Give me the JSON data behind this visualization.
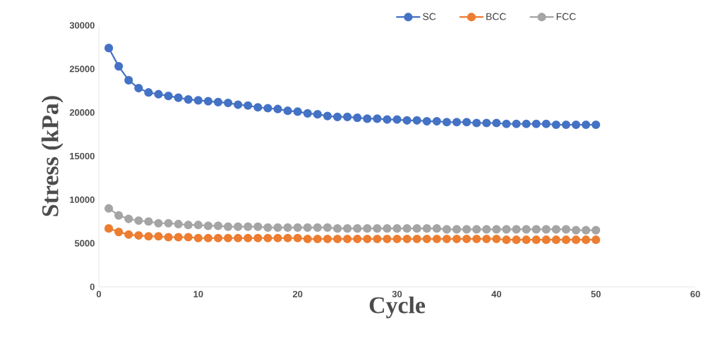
{
  "chart_data": {
    "type": "line",
    "xlabel": "Cycle",
    "ylabel": "Stress (kPa)",
    "x": [
      1,
      2,
      3,
      4,
      5,
      6,
      7,
      8,
      9,
      10,
      11,
      12,
      13,
      14,
      15,
      16,
      17,
      18,
      19,
      20,
      21,
      22,
      23,
      24,
      25,
      26,
      27,
      28,
      29,
      30,
      31,
      32,
      33,
      34,
      35,
      36,
      37,
      38,
      39,
      40,
      41,
      42,
      43,
      44,
      45,
      46,
      47,
      48,
      49,
      50
    ],
    "series": [
      {
        "name": "SC",
        "color": "#4472c4",
        "values": [
          27400,
          25300,
          23700,
          22800,
          22300,
          22100,
          21900,
          21700,
          21500,
          21400,
          21300,
          21200,
          21100,
          20900,
          20800,
          20600,
          20500,
          20400,
          20200,
          20100,
          19900,
          19800,
          19600,
          19500,
          19500,
          19400,
          19300,
          19300,
          19200,
          19200,
          19100,
          19100,
          19000,
          19000,
          18900,
          18900,
          18900,
          18800,
          18800,
          18800,
          18700,
          18700,
          18700,
          18700,
          18700,
          18600,
          18600,
          18600,
          18600,
          18600
        ]
      },
      {
        "name": "BCC",
        "color": "#ed7d31",
        "values": [
          6700,
          6300,
          6000,
          5900,
          5800,
          5800,
          5700,
          5700,
          5700,
          5600,
          5600,
          5600,
          5600,
          5600,
          5600,
          5600,
          5600,
          5600,
          5600,
          5600,
          5500,
          5500,
          5500,
          5500,
          5500,
          5500,
          5500,
          5500,
          5500,
          5500,
          5500,
          5500,
          5500,
          5500,
          5500,
          5500,
          5500,
          5500,
          5500,
          5500,
          5400,
          5400,
          5400,
          5400,
          5400,
          5400,
          5400,
          5400,
          5400,
          5400
        ]
      },
      {
        "name": "FCC",
        "color": "#a5a5a5",
        "values": [
          9000,
          8200,
          7800,
          7600,
          7500,
          7300,
          7300,
          7200,
          7100,
          7100,
          7000,
          7000,
          6900,
          6900,
          6900,
          6900,
          6800,
          6800,
          6800,
          6800,
          6800,
          6800,
          6800,
          6700,
          6700,
          6700,
          6700,
          6700,
          6700,
          6700,
          6700,
          6700,
          6700,
          6700,
          6600,
          6600,
          6600,
          6600,
          6600,
          6600,
          6600,
          6600,
          6600,
          6600,
          6600,
          6600,
          6600,
          6500,
          6500,
          6500
        ]
      }
    ],
    "xlim": [
      0,
      60
    ],
    "xticks": [
      0,
      10,
      20,
      30,
      40,
      50,
      60
    ],
    "ylim": [
      0,
      30000
    ],
    "yticks": [
      0,
      5000,
      10000,
      15000,
      20000,
      25000,
      30000
    ],
    "grid": false,
    "legend": "top",
    "marker": "circle",
    "line_style": "solid"
  }
}
